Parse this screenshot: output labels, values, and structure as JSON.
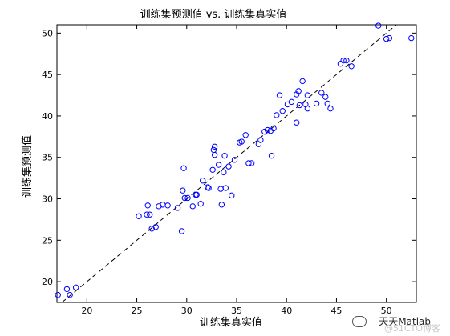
{
  "chart_data": {
    "type": "scatter",
    "title": "训练集预测值 vs. 训练集真实值",
    "xlabel": "训练集真实值",
    "ylabel": "训练集预测值",
    "xlim": [
      17,
      53
    ],
    "ylim": [
      17.5,
      51
    ],
    "xticks": [
      20,
      25,
      30,
      35,
      40,
      45,
      50
    ],
    "yticks": [
      20,
      25,
      30,
      35,
      40,
      45,
      50
    ],
    "grid": false,
    "marker": "circle-open",
    "marker_color": "#0000ff",
    "reference_line": {
      "style": "dashed",
      "color": "#000000",
      "from": [
        17.5,
        17.5
      ],
      "to": [
        51,
        51
      ]
    },
    "points": [
      [
        17.1,
        18.4
      ],
      [
        18.0,
        19.1
      ],
      [
        18.3,
        18.4
      ],
      [
        18.9,
        19.3
      ],
      [
        25.2,
        27.9
      ],
      [
        26.0,
        28.1
      ],
      [
        26.1,
        29.2
      ],
      [
        26.3,
        28.1
      ],
      [
        26.5,
        26.4
      ],
      [
        26.9,
        26.6
      ],
      [
        27.2,
        29.1
      ],
      [
        27.6,
        29.3
      ],
      [
        28.1,
        29.2
      ],
      [
        29.1,
        28.9
      ],
      [
        29.5,
        26.1
      ],
      [
        29.6,
        31.0
      ],
      [
        29.7,
        33.7
      ],
      [
        29.8,
        30.1
      ],
      [
        30.1,
        30.1
      ],
      [
        30.6,
        29.1
      ],
      [
        30.9,
        30.5
      ],
      [
        31.0,
        30.5
      ],
      [
        31.4,
        29.4
      ],
      [
        31.6,
        32.2
      ],
      [
        32.1,
        31.4
      ],
      [
        32.2,
        31.3
      ],
      [
        32.6,
        33.5
      ],
      [
        32.7,
        35.9
      ],
      [
        32.8,
        36.3
      ],
      [
        32.8,
        35.3
      ],
      [
        33.2,
        34.1
      ],
      [
        33.4,
        31.2
      ],
      [
        33.5,
        29.3
      ],
      [
        33.7,
        33.2
      ],
      [
        33.8,
        35.2
      ],
      [
        33.9,
        31.3
      ],
      [
        34.2,
        33.9
      ],
      [
        34.5,
        30.4
      ],
      [
        34.8,
        34.7
      ],
      [
        35.3,
        36.8
      ],
      [
        35.5,
        36.9
      ],
      [
        35.9,
        37.7
      ],
      [
        36.2,
        34.3
      ],
      [
        36.5,
        34.3
      ],
      [
        37.2,
        36.6
      ],
      [
        37.4,
        37.1
      ],
      [
        37.8,
        38.1
      ],
      [
        38.1,
        38.3
      ],
      [
        38.4,
        38.2
      ],
      [
        38.7,
        38.5
      ],
      [
        38.5,
        35.2
      ],
      [
        39.0,
        40.1
      ],
      [
        39.3,
        42.5
      ],
      [
        39.6,
        40.6
      ],
      [
        40.1,
        41.4
      ],
      [
        40.5,
        41.7
      ],
      [
        41.0,
        39.2
      ],
      [
        41.0,
        42.6
      ],
      [
        41.2,
        43.0
      ],
      [
        41.3,
        41.3
      ],
      [
        41.6,
        44.2
      ],
      [
        41.9,
        41.4
      ],
      [
        42.1,
        42.5
      ],
      [
        42.1,
        40.9
      ],
      [
        43.0,
        41.5
      ],
      [
        43.5,
        42.8
      ],
      [
        43.9,
        42.3
      ],
      [
        44.1,
        41.5
      ],
      [
        44.4,
        40.9
      ],
      [
        45.4,
        46.3
      ],
      [
        45.7,
        46.7
      ],
      [
        46.0,
        46.7
      ],
      [
        46.5,
        46.0
      ],
      [
        49.2,
        50.9
      ],
      [
        50.0,
        49.3
      ],
      [
        50.3,
        49.4
      ],
      [
        52.5,
        49.4
      ]
    ]
  },
  "watermark": {
    "line1": "天天Matlab",
    "line2": "@51CTO博客"
  }
}
